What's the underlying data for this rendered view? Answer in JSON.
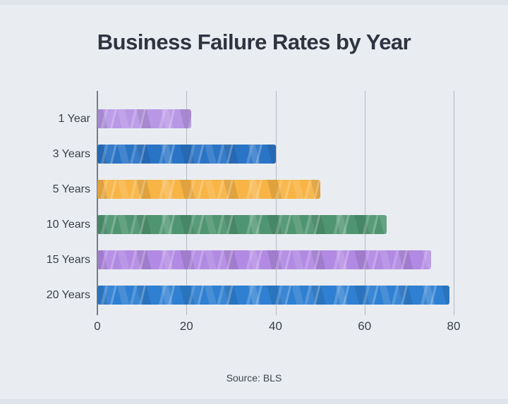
{
  "title": "Business Failure Rates by Year",
  "source": "Source: BLS",
  "chart_data": {
    "type": "bar",
    "orientation": "horizontal",
    "title": "Business Failure Rates by Year",
    "categories": [
      "1 Year",
      "3 Years",
      "5 Years",
      "10 Years",
      "15 Years",
      "20 Years"
    ],
    "values": [
      21,
      40,
      50,
      65,
      75,
      79
    ],
    "bar_colors": [
      "#b897e6",
      "#2a74c6",
      "#f8b445",
      "#4f9571",
      "#b28ae3",
      "#2f80d2"
    ],
    "xlabel": "",
    "ylabel": "",
    "xlim": [
      0,
      80
    ],
    "xticks": [
      0,
      20,
      40,
      60,
      80
    ],
    "grid": true,
    "legend": false,
    "annotation": "Source: BLS"
  },
  "colors": {
    "background": "#e9edf2",
    "title_text": "#2e3440",
    "axis_line": "#767e88",
    "gridline": "#b4bac1",
    "tick_label": "#3a3f47",
    "category_label": "#3a3f47",
    "source_text": "#3f454d"
  }
}
